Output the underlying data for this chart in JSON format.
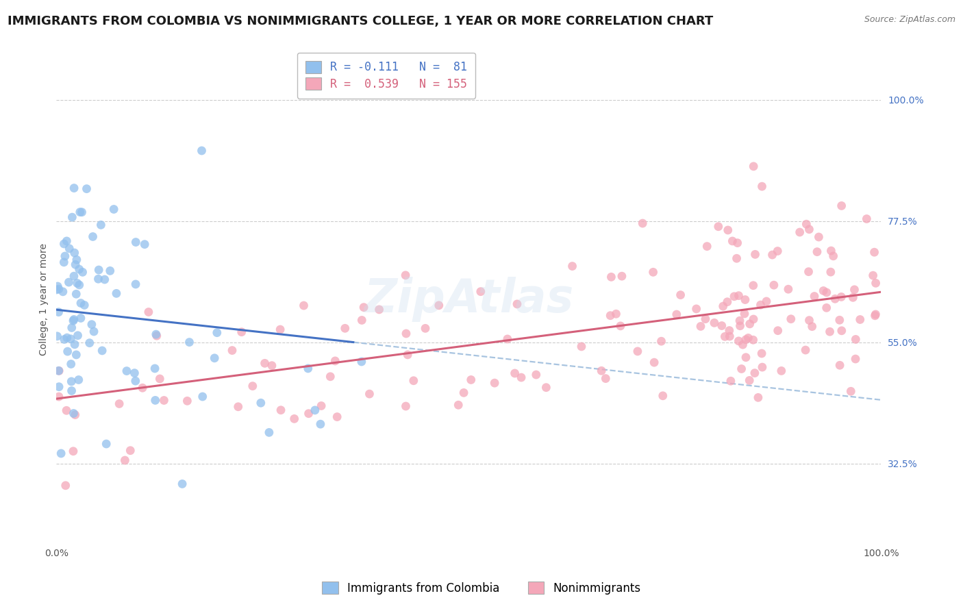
{
  "title": "IMMIGRANTS FROM COLOMBIA VS NONIMMIGRANTS COLLEGE, 1 YEAR OR MORE CORRELATION CHART",
  "source": "Source: ZipAtlas.com",
  "ylabel": "College, 1 year or more",
  "x_min": 0.0,
  "x_max": 1.0,
  "y_min": 0.18,
  "y_max": 1.08,
  "y_ticks": [
    0.325,
    0.55,
    0.775,
    1.0
  ],
  "y_tick_labels": [
    "32.5%",
    "55.0%",
    "77.5%",
    "100.0%"
  ],
  "x_ticks": [
    0.0,
    0.25,
    0.5,
    0.75,
    1.0
  ],
  "x_tick_labels": [
    "0.0%",
    "",
    "",
    "",
    "100.0%"
  ],
  "legend_label_blue": "Immigrants from Colombia",
  "legend_label_pink": "Nonimmigrants",
  "R_blue": -0.111,
  "N_blue": 81,
  "R_pink": 0.539,
  "N_pink": 155,
  "blue_color": "#92C0ED",
  "pink_color": "#F4A7B9",
  "blue_line_color": "#4472C4",
  "pink_line_color": "#D4607A",
  "dashed_line_color": "#A8C4E0",
  "background_color": "#FFFFFF",
  "title_fontsize": 13,
  "source_fontsize": 9,
  "axis_label_fontsize": 10,
  "tick_fontsize": 10,
  "legend_fontsize": 12,
  "watermark_text": "ZipAtlas",
  "watermark_color": "#CCDDEE",
  "watermark_alpha": 0.35
}
